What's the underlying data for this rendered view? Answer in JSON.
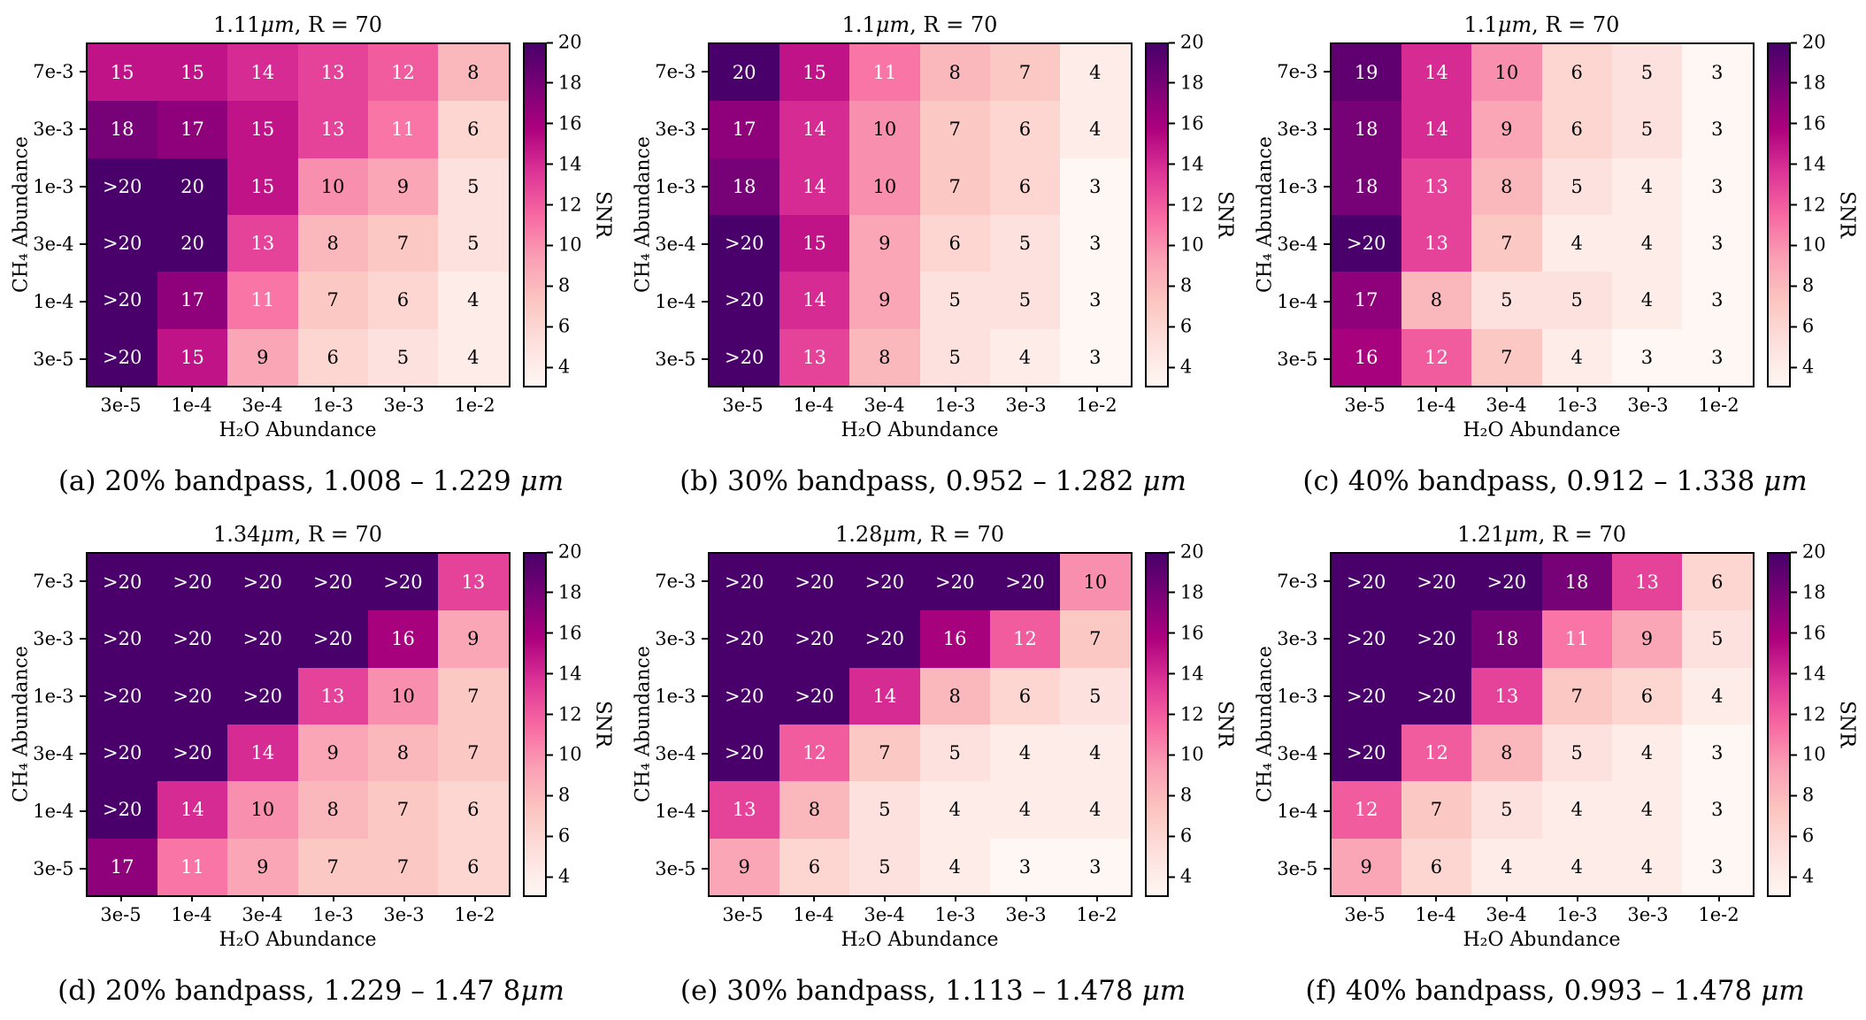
{
  "figure": {
    "xlabel": "H₂O Abundance",
    "ylabel": "CH₄ Abundance"
  },
  "colors": {
    "colormap_name": "RdPu",
    "colormap_stops": [
      "#fff7f3",
      "#fde0dd",
      "#fcc5c0",
      "#fa9fb5",
      "#f768a1",
      "#dd3497",
      "#ae017e",
      "#7a0177",
      "#49006a"
    ],
    "cell_text_dark": "#000000",
    "cell_text_light": "#ffffff",
    "axis_color": "#000000"
  },
  "colorbar": {
    "label": "SNR",
    "ticks": [
      4,
      6,
      8,
      10,
      12,
      14,
      16,
      18,
      20
    ],
    "vmin": 3,
    "vmax": 20
  },
  "chart_data": [
    {
      "type": "heatmap",
      "title": "1.11 μm, R = 70",
      "caption": "(a) 20% bandpass, 1.008 – 1.229 μm",
      "xlabel": "H₂O Abundance",
      "ylabel": "CH₄ Abundance",
      "x": [
        "3e-5",
        "1e-4",
        "3e-4",
        "1e-3",
        "3e-3",
        "1e-2"
      ],
      "y": [
        "7e-3",
        "3e-3",
        "1e-3",
        "3e-4",
        "1e-4",
        "3e-5"
      ],
      "values": [
        [
          15,
          15,
          14,
          13,
          12,
          8
        ],
        [
          18,
          17,
          15,
          13,
          11,
          6
        ],
        [
          ">20",
          20,
          15,
          10,
          9,
          5
        ],
        [
          ">20",
          20,
          13,
          8,
          7,
          5
        ],
        [
          ">20",
          17,
          11,
          7,
          6,
          4
        ],
        [
          ">20",
          15,
          9,
          6,
          5,
          4
        ]
      ],
      "colorbar_label": "SNR"
    },
    {
      "type": "heatmap",
      "title": "1.1 μm, R = 70",
      "caption": "(b) 30% bandpass, 0.952 – 1.282 μm",
      "xlabel": "H₂O Abundance",
      "ylabel": "CH₄ Abundance",
      "x": [
        "3e-5",
        "1e-4",
        "3e-4",
        "1e-3",
        "3e-3",
        "1e-2"
      ],
      "y": [
        "7e-3",
        "3e-3",
        "1e-3",
        "3e-4",
        "1e-4",
        "3e-5"
      ],
      "values": [
        [
          20,
          15,
          11,
          8,
          7,
          4
        ],
        [
          17,
          14,
          10,
          7,
          6,
          4
        ],
        [
          18,
          14,
          10,
          7,
          6,
          3
        ],
        [
          ">20",
          15,
          9,
          6,
          5,
          3
        ],
        [
          ">20",
          14,
          9,
          5,
          5,
          3
        ],
        [
          ">20",
          13,
          8,
          5,
          4,
          3
        ]
      ],
      "colorbar_label": "SNR"
    },
    {
      "type": "heatmap",
      "title": "1.1 μm, R = 70",
      "caption": "(c) 40% bandpass, 0.912 – 1.338 μm",
      "xlabel": "H₂O Abundance",
      "ylabel": "CH₄ Abundance",
      "x": [
        "3e-5",
        "1e-4",
        "3e-4",
        "1e-3",
        "3e-3",
        "1e-2"
      ],
      "y": [
        "7e-3",
        "3e-3",
        "1e-3",
        "3e-4",
        "1e-4",
        "3e-5"
      ],
      "values": [
        [
          19,
          14,
          10,
          6,
          5,
          3
        ],
        [
          18,
          14,
          9,
          6,
          5,
          3
        ],
        [
          18,
          13,
          8,
          5,
          4,
          3
        ],
        [
          ">20",
          13,
          7,
          4,
          4,
          3
        ],
        [
          17,
          8,
          5,
          5,
          4,
          3
        ],
        [
          16,
          12,
          7,
          4,
          3,
          3
        ]
      ],
      "colorbar_label": "SNR"
    },
    {
      "type": "heatmap",
      "title": "1.34 μm, R = 70",
      "caption": "(d) 20% bandpass, 1.229 – 1.47 8μm",
      "xlabel": "H₂O Abundance",
      "ylabel": "CH₄ Abundance",
      "x": [
        "3e-5",
        "1e-4",
        "3e-4",
        "1e-3",
        "3e-3",
        "1e-2"
      ],
      "y": [
        "7e-3",
        "3e-3",
        "1e-3",
        "3e-4",
        "1e-4",
        "3e-5"
      ],
      "values": [
        [
          ">20",
          ">20",
          ">20",
          ">20",
          ">20",
          13
        ],
        [
          ">20",
          ">20",
          ">20",
          ">20",
          16,
          9
        ],
        [
          ">20",
          ">20",
          ">20",
          13,
          10,
          7
        ],
        [
          ">20",
          ">20",
          14,
          9,
          8,
          7
        ],
        [
          ">20",
          14,
          10,
          8,
          7,
          6
        ],
        [
          17,
          11,
          9,
          7,
          7,
          6
        ]
      ],
      "colorbar_label": "SNR"
    },
    {
      "type": "heatmap",
      "title": "1.28 μm, R = 70",
      "caption": "(e) 30% bandpass, 1.113 – 1.478 μm",
      "xlabel": "H₂O Abundance",
      "ylabel": "CH₄ Abundance",
      "x": [
        "3e-5",
        "1e-4",
        "3e-4",
        "1e-3",
        "3e-3",
        "1e-2"
      ],
      "y": [
        "7e-3",
        "3e-3",
        "1e-3",
        "3e-4",
        "1e-4",
        "3e-5"
      ],
      "values": [
        [
          ">20",
          ">20",
          ">20",
          ">20",
          ">20",
          10
        ],
        [
          ">20",
          ">20",
          ">20",
          16,
          12,
          7
        ],
        [
          ">20",
          ">20",
          14,
          8,
          6,
          5
        ],
        [
          ">20",
          12,
          7,
          5,
          4,
          4
        ],
        [
          13,
          8,
          5,
          4,
          4,
          4
        ],
        [
          9,
          6,
          5,
          4,
          3,
          3
        ]
      ],
      "colorbar_label": "SNR"
    },
    {
      "type": "heatmap",
      "title": "1.21 μm, R = 70",
      "caption": "(f) 40% bandpass, 0.993 – 1.478 μm",
      "xlabel": "H₂O Abundance",
      "ylabel": "CH₄ Abundance",
      "x": [
        "3e-5",
        "1e-4",
        "3e-4",
        "1e-3",
        "3e-3",
        "1e-2"
      ],
      "y": [
        "7e-3",
        "3e-3",
        "1e-3",
        "3e-4",
        "1e-4",
        "3e-5"
      ],
      "values": [
        [
          ">20",
          ">20",
          ">20",
          18,
          13,
          6
        ],
        [
          ">20",
          ">20",
          18,
          11,
          9,
          5
        ],
        [
          ">20",
          ">20",
          13,
          7,
          6,
          4
        ],
        [
          ">20",
          12,
          8,
          5,
          4,
          3
        ],
        [
          12,
          7,
          5,
          4,
          4,
          3
        ],
        [
          9,
          6,
          4,
          4,
          4,
          3
        ]
      ],
      "colorbar_label": "SNR"
    }
  ]
}
